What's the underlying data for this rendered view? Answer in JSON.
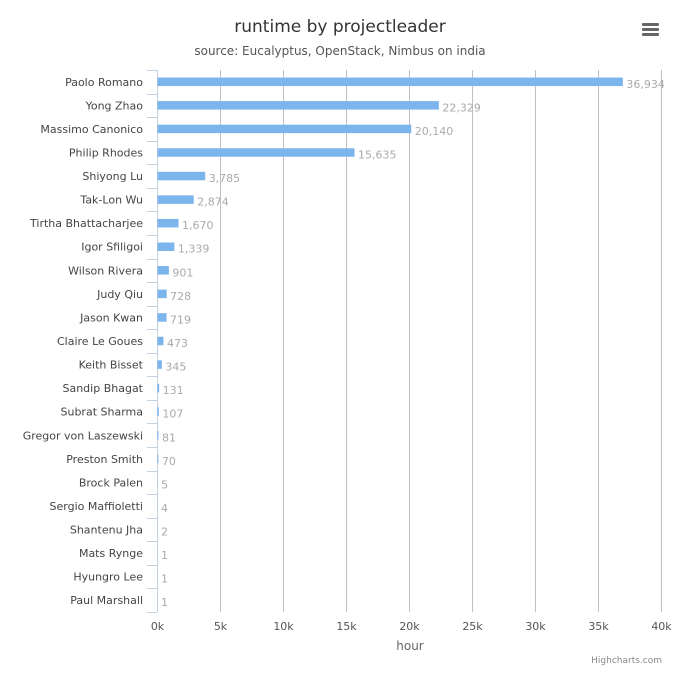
{
  "colors": {
    "bar": "#7cb5ec",
    "grid": "#c0c0c0",
    "axis": "#c0d0e0"
  },
  "menu": {
    "icon": "hamburger-menu-icon"
  },
  "credits": "Highcharts.com",
  "chart_data": {
    "type": "bar",
    "orientation": "horizontal",
    "title": "runtime by projectleader",
    "subtitle": "source: Eucalyptus, OpenStack, Nimbus on india",
    "xlabel": "",
    "ylabel": "hour",
    "ylim": [
      0,
      40000
    ],
    "ticks": [
      {
        "value": 0,
        "label": "0k"
      },
      {
        "value": 5000,
        "label": "5k"
      },
      {
        "value": 10000,
        "label": "10k"
      },
      {
        "value": 15000,
        "label": "15k"
      },
      {
        "value": 20000,
        "label": "20k"
      },
      {
        "value": 25000,
        "label": "25k"
      },
      {
        "value": 30000,
        "label": "30k"
      },
      {
        "value": 35000,
        "label": "35k"
      },
      {
        "value": 40000,
        "label": "40k"
      }
    ],
    "grid": true,
    "legend": false,
    "categories": [
      "Paolo Romano",
      "Yong Zhao",
      "Massimo Canonico",
      "Philip Rhodes",
      "Shiyong Lu",
      "Tak-Lon Wu",
      "Tirtha Bhattacharjee",
      "Igor Sfiligoi",
      "Wilson Rivera",
      "Judy Qiu",
      "Jason Kwan",
      "Claire Le Goues",
      "Keith Bisset",
      "Sandip Bhagat",
      "Subrat Sharma",
      "Gregor von Laszewski",
      "Preston Smith",
      "Brock Palen",
      "Sergio Maffioletti",
      "Shantenu Jha",
      "Mats Rynge",
      "Hyungro Lee",
      "Paul Marshall"
    ],
    "values": [
      36934,
      22329,
      20140,
      15635,
      3785,
      2874,
      1670,
      1339,
      901,
      728,
      719,
      473,
      345,
      131,
      107,
      81,
      70,
      5,
      4,
      2,
      1,
      1,
      1
    ],
    "data_labels": [
      "36,934",
      "22,329",
      "20,140",
      "15,635",
      "3,785",
      "2,874",
      "1,670",
      "1,339",
      "901",
      "728",
      "719",
      "473",
      "345",
      "131",
      "107",
      "81",
      "70",
      "5",
      "4",
      "2",
      "1",
      "1",
      "1"
    ]
  }
}
